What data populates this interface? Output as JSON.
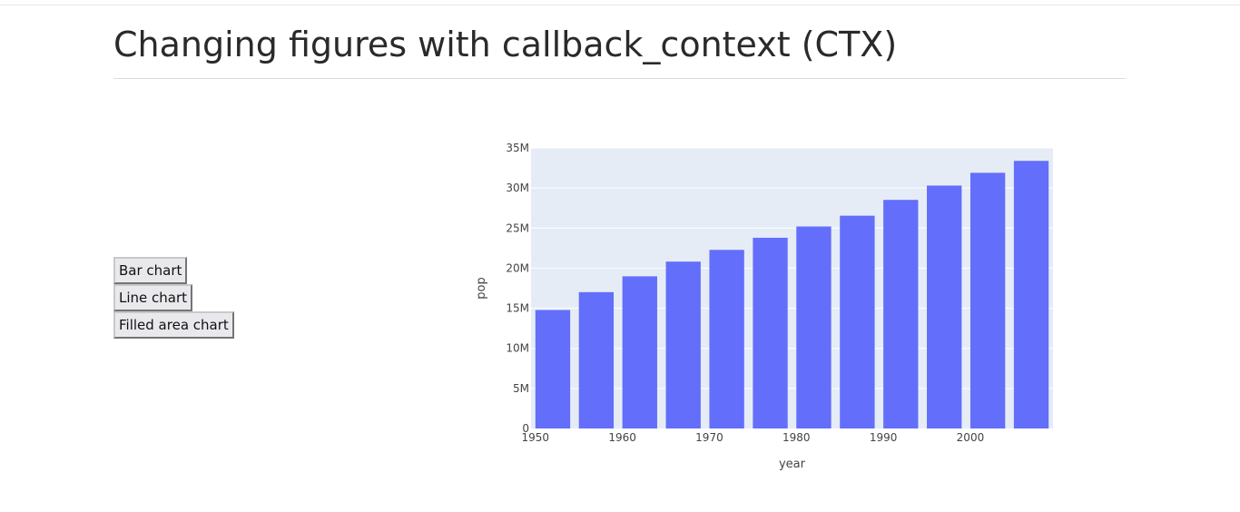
{
  "page": {
    "title": "Changing figures with callback_context (CTX)"
  },
  "buttons": [
    {
      "label": "Bar chart"
    },
    {
      "label": "Line chart"
    },
    {
      "label": "Filled area chart"
    }
  ],
  "chart_data": {
    "type": "bar",
    "x": [
      1952,
      1957,
      1962,
      1967,
      1972,
      1977,
      1982,
      1987,
      1992,
      1997,
      2002,
      2007
    ],
    "values": [
      14785584,
      17010154,
      18985849,
      20819767,
      22284500,
      23796400,
      25201900,
      26549700,
      28523502,
      30305843,
      31902268,
      33390141
    ],
    "xlabel": "year",
    "ylabel": "pop",
    "xticks": [
      1950,
      1960,
      1970,
      1980,
      1990,
      2000
    ],
    "yticks": [
      0,
      5000000,
      10000000,
      15000000,
      20000000,
      25000000,
      30000000,
      35000000
    ],
    "ytick_labels": [
      "0",
      "5M",
      "10M",
      "15M",
      "20M",
      "25M",
      "30M",
      "35M"
    ],
    "xlim": [
      1949.5,
      2009.5
    ],
    "ylim": [
      0,
      35000000
    ],
    "grid": true,
    "colors": {
      "bar": "#636efa",
      "plot_bg": "#e5ecf6",
      "grid": "#ffffff"
    }
  }
}
